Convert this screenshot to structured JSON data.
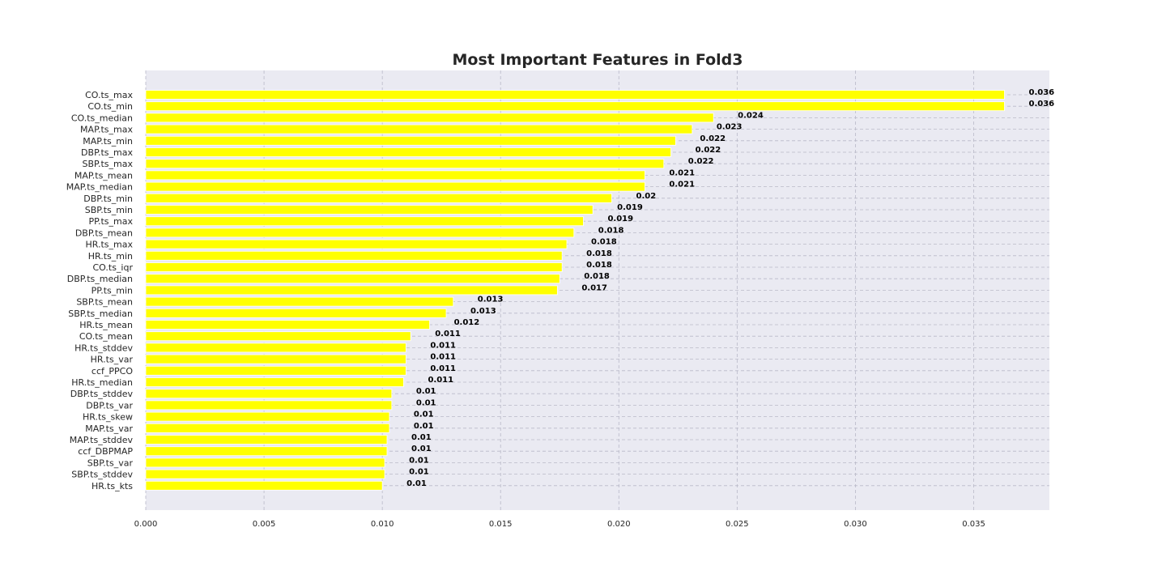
{
  "chart_data": {
    "type": "bar",
    "orientation": "horizontal",
    "title": "Most Important Features in Fold3",
    "xlabel": "",
    "ylabel": "",
    "xlim": [
      0,
      0.0382
    ],
    "xticks": [
      0,
      0.005,
      0.01,
      0.015,
      0.02,
      0.025,
      0.03,
      0.035
    ],
    "xtick_labels": [
      "0.000",
      "0.005",
      "0.010",
      "0.015",
      "0.020",
      "0.025",
      "0.030",
      "0.035"
    ],
    "grid": true,
    "grid_style": "dashed",
    "colors": {
      "bar": "#ffff00",
      "bar_edge": "#ffffff",
      "plot_background": "#eaeaf2",
      "grid": "#b9b9c8",
      "text": "#262626"
    },
    "categories": [
      "CO.ts_max",
      "CO.ts_min",
      "CO.ts_median",
      "MAP.ts_max",
      "MAP.ts_min",
      "DBP.ts_max",
      "SBP.ts_max",
      "MAP.ts_mean",
      "MAP.ts_median",
      "DBP.ts_min",
      "SBP.ts_min",
      "PP.ts_max",
      "DBP.ts_mean",
      "HR.ts_max",
      "HR.ts_min",
      "CO.ts_iqr",
      "DBP.ts_median",
      "PP.ts_min",
      "SBP.ts_mean",
      "SBP.ts_median",
      "HR.ts_mean",
      "CO.ts_mean",
      "HR.ts_stddev",
      "HR.ts_var",
      "ccf_PPCO",
      "HR.ts_median",
      "DBP.ts_stddev",
      "DBP.ts_var",
      "HR.ts_skew",
      "MAP.ts_var",
      "MAP.ts_stddev",
      "ccf_DBPMAP",
      "SBP.ts_var",
      "SBP.ts_stddev",
      "HR.ts_kts"
    ],
    "values": [
      0.0363,
      0.0363,
      0.024,
      0.0231,
      0.0224,
      0.0222,
      0.0219,
      0.0211,
      0.0211,
      0.0197,
      0.0189,
      0.0185,
      0.0181,
      0.0178,
      0.0176,
      0.0176,
      0.0175,
      0.0174,
      0.013,
      0.0127,
      0.012,
      0.0112,
      0.011,
      0.011,
      0.011,
      0.0109,
      0.0104,
      0.0104,
      0.0103,
      0.0103,
      0.0102,
      0.0102,
      0.0101,
      0.0101,
      0.01
    ],
    "value_labels": [
      "0.036",
      "0.036",
      "0.024",
      "0.023",
      "0.022",
      "0.022",
      "0.022",
      "0.021",
      "0.021",
      "0.02",
      "0.019",
      "0.019",
      "0.018",
      "0.018",
      "0.018",
      "0.018",
      "0.018",
      "0.017",
      "0.013",
      "0.013",
      "0.012",
      "0.011",
      "0.011",
      "0.011",
      "0.011",
      "0.011",
      "0.01",
      "0.01",
      "0.01",
      "0.01",
      "0.01",
      "0.01",
      "0.01",
      "0.01",
      "0.01"
    ]
  }
}
